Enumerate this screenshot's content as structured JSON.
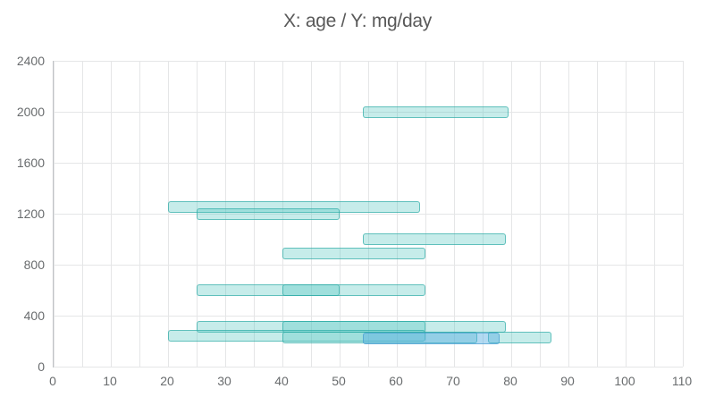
{
  "title": "X: age / Y: mg/day",
  "colors": {
    "teal_fill": "rgba(77,195,190,0.32)",
    "teal_border": "rgba(42,167,163,0.65)",
    "blue_fill": "rgba(84,174,226,0.45)",
    "blue_border": "rgba(62,150,205,0.60)",
    "grid": "#e5e6e7",
    "axis": "#bfc2c5",
    "label": "#696c6e",
    "title": "#595959"
  },
  "chart_data": {
    "type": "bar",
    "orientation": "horizontal-range",
    "title": "X: age / Y: mg/day",
    "xlabel": "age",
    "ylabel": "mg/day",
    "xlim": [
      0,
      110
    ],
    "ylim": [
      0,
      2400
    ],
    "x_ticks": [
      0,
      10,
      20,
      30,
      40,
      50,
      60,
      70,
      80,
      90,
      100,
      110
    ],
    "y_ticks": [
      0,
      400,
      800,
      1200,
      1600,
      2000,
      2400
    ],
    "x_grid_step": 5,
    "grid": true,
    "legend": "none",
    "bars": [
      {
        "x_start": 54,
        "x_end": 79.5,
        "y": 2000,
        "color": "teal"
      },
      {
        "x_start": 20,
        "x_end": 64,
        "y": 1250,
        "color": "teal"
      },
      {
        "x_start": 25,
        "x_end": 50,
        "y": 1200,
        "color": "teal"
      },
      {
        "x_start": 54,
        "x_end": 79,
        "y": 1000,
        "color": "teal"
      },
      {
        "x_start": 40,
        "x_end": 65,
        "y": 890,
        "color": "teal"
      },
      {
        "x_start": 25,
        "x_end": 65,
        "y": 600,
        "color": "teal"
      },
      {
        "x_start": 40,
        "x_end": 50,
        "y": 600,
        "color": "teal"
      },
      {
        "x_start": 25,
        "x_end": 65,
        "y": 310,
        "color": "teal"
      },
      {
        "x_start": 40,
        "x_end": 79,
        "y": 310,
        "color": "teal"
      },
      {
        "x_start": 20,
        "x_end": 65,
        "y": 240,
        "color": "teal"
      },
      {
        "x_start": 40,
        "x_end": 74,
        "y": 230,
        "color": "teal"
      },
      {
        "x_start": 76,
        "x_end": 87,
        "y": 225,
        "color": "teal"
      },
      {
        "x_start": 54,
        "x_end": 78,
        "y": 220,
        "color": "blue"
      }
    ]
  }
}
